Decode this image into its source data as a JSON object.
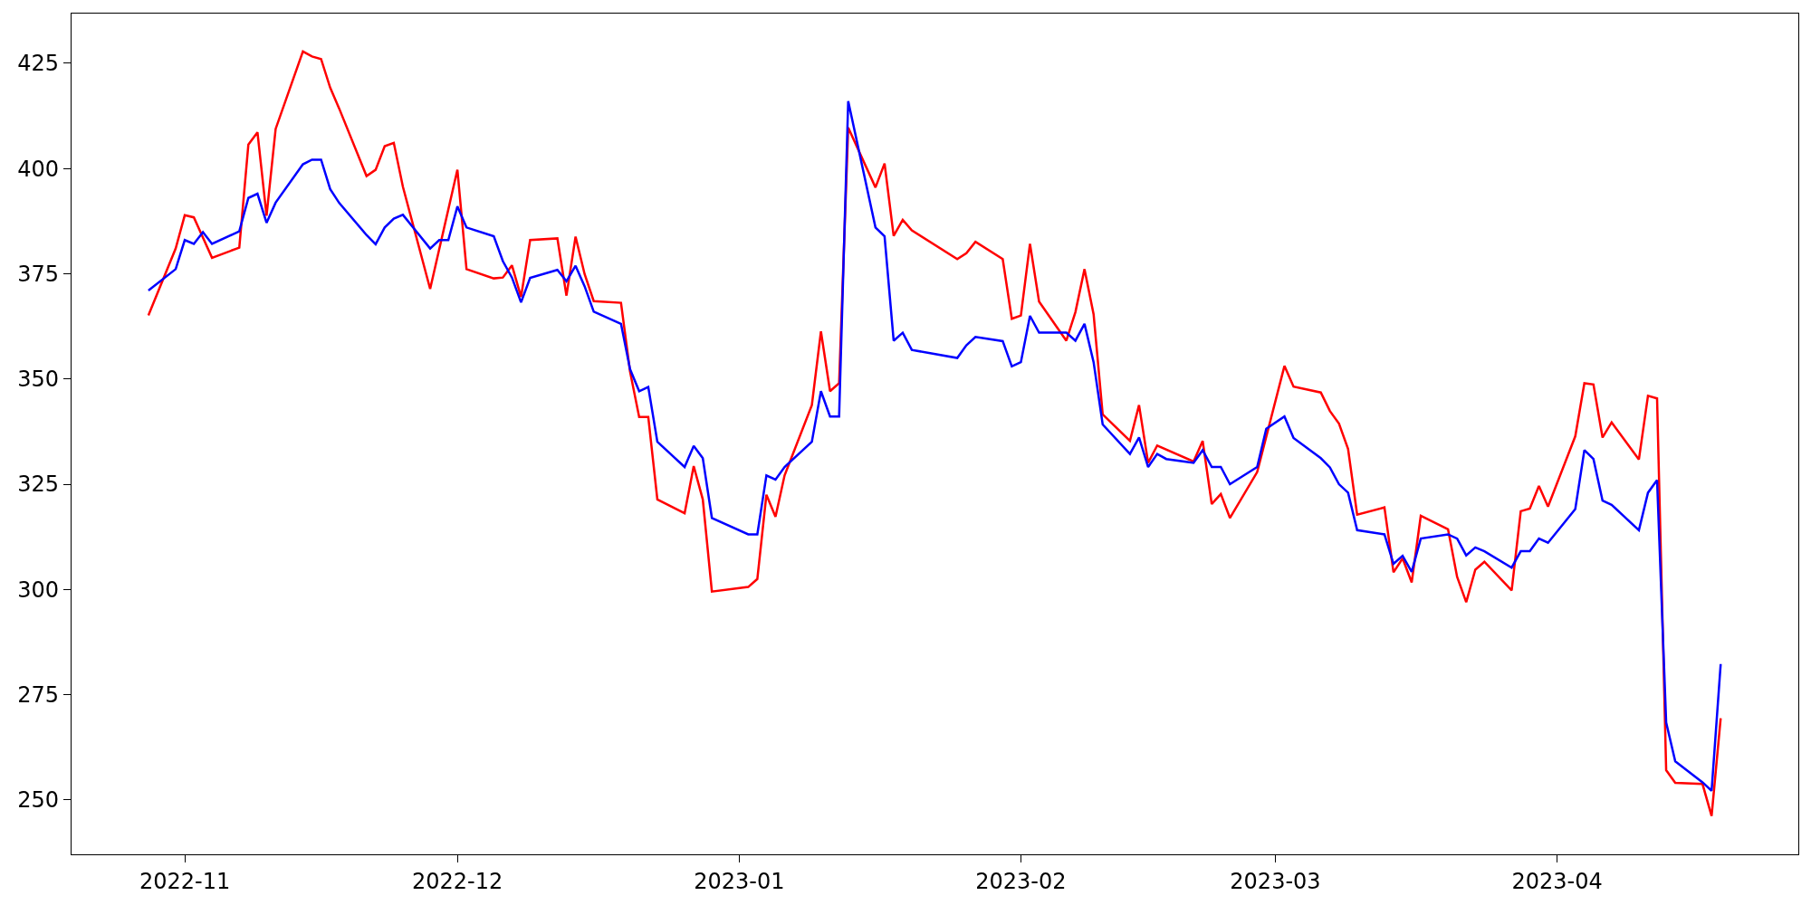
{
  "chart_data": {
    "type": "line",
    "series": [
      {
        "color": "#ff0000",
        "x": [
          "2022-10-28",
          "2022-10-31",
          "2022-11-01",
          "2022-11-02",
          "2022-11-04",
          "2022-11-07",
          "2022-11-08",
          "2022-11-09",
          "2022-11-10",
          "2022-11-11",
          "2022-11-14",
          "2022-11-15",
          "2022-11-16",
          "2022-11-17",
          "2022-11-18",
          "2022-11-21",
          "2022-11-22",
          "2022-11-23",
          "2022-11-24",
          "2022-11-25",
          "2022-11-28",
          "2022-12-01",
          "2022-12-02",
          "2022-12-05",
          "2022-12-06",
          "2022-12-07",
          "2022-12-08",
          "2022-12-09",
          "2022-12-12",
          "2022-12-13",
          "2022-12-14",
          "2022-12-15",
          "2022-12-16",
          "2022-12-19",
          "2022-12-20",
          "2022-12-21",
          "2022-12-22",
          "2022-12-23",
          "2022-12-26",
          "2022-12-27",
          "2022-12-28",
          "2022-12-29",
          "2023-01-02",
          "2023-01-03",
          "2023-01-04",
          "2023-01-05",
          "2023-01-06",
          "2023-01-09",
          "2023-01-10",
          "2023-01-11",
          "2023-01-12",
          "2023-01-13",
          "2023-01-16",
          "2023-01-17",
          "2023-01-18",
          "2023-01-19",
          "2023-01-20",
          "2023-01-25",
          "2023-01-26",
          "2023-01-27",
          "2023-01-30",
          "2023-01-31",
          "2023-02-01",
          "2023-02-02",
          "2023-02-03",
          "2023-02-06",
          "2023-02-07",
          "2023-02-08",
          "2023-02-09",
          "2023-02-10",
          "2023-02-13",
          "2023-02-14",
          "2023-02-15",
          "2023-02-16",
          "2023-02-20",
          "2023-02-21",
          "2023-02-22",
          "2023-02-23",
          "2023-02-24",
          "2023-02-27",
          "2023-03-02",
          "2023-03-03",
          "2023-03-06",
          "2023-03-07",
          "2023-03-08",
          "2023-03-09",
          "2023-03-10",
          "2023-03-13",
          "2023-03-14",
          "2023-03-15",
          "2023-03-16",
          "2023-03-17",
          "2023-03-20",
          "2023-03-21",
          "2023-03-22",
          "2023-03-23",
          "2023-03-24",
          "2023-03-27",
          "2023-03-28",
          "2023-03-29",
          "2023-03-30",
          "2023-03-31",
          "2023-04-03",
          "2023-04-04",
          "2023-04-05",
          "2023-04-06",
          "2023-04-07",
          "2023-04-10",
          "2023-04-11",
          "2023-04-12",
          "2023-04-13",
          "2023-04-14",
          "2023-04-17",
          "2023-04-18",
          "2023-04-19"
        ],
        "values": [
          365.1,
          381.0,
          388.9,
          388.4,
          378.8,
          381.2,
          405.7,
          408.6,
          388.8,
          409.4,
          427.8,
          426.6,
          426.0,
          419.2,
          414.2,
          398.2,
          399.7,
          405.3,
          406.1,
          395.7,
          371.4,
          399.7,
          376.1,
          373.9,
          374.1,
          377.0,
          369.5,
          383.0,
          383.4,
          369.8,
          383.8,
          374.9,
          368.5,
          368.1,
          351.7,
          341.0,
          341.0,
          321.4,
          318.1,
          329.3,
          321.4,
          299.5,
          300.6,
          302.5,
          322.5,
          317.3,
          327.1,
          343.8,
          361.3,
          347.1,
          349.0,
          409.7,
          395.5,
          401.2,
          384.0,
          387.8,
          385.3,
          378.5,
          379.9,
          382.6,
          378.5,
          364.3,
          365.1,
          382.1,
          368.4,
          359.1,
          365.9,
          376.1,
          365.4,
          341.6,
          335.3,
          343.8,
          330.1,
          334.2,
          330.4,
          335.3,
          320.3,
          322.7,
          317.0,
          327.9,
          353.1,
          348.2,
          346.8,
          342.4,
          339.4,
          333.4,
          317.8,
          319.5,
          304.1,
          307.4,
          301.7,
          317.5,
          314.3,
          303.0,
          297.0,
          304.7,
          306.6,
          299.8,
          318.6,
          319.2,
          324.6,
          319.7,
          336.4,
          349.0,
          348.7,
          336.1,
          339.7,
          330.9,
          346.0,
          345.4,
          257.1,
          254.1,
          253.8,
          246.2,
          269.4
        ]
      },
      {
        "color": "#0000ff",
        "x": [
          "2022-10-28",
          "2022-10-31",
          "2022-11-01",
          "2022-11-02",
          "2022-11-03",
          "2022-11-04",
          "2022-11-07",
          "2022-11-08",
          "2022-11-09",
          "2022-11-10",
          "2022-11-11",
          "2022-11-14",
          "2022-11-15",
          "2022-11-16",
          "2022-11-17",
          "2022-11-18",
          "2022-11-21",
          "2022-11-22",
          "2022-11-23",
          "2022-11-24",
          "2022-11-25",
          "2022-11-28",
          "2022-11-29",
          "2022-11-30",
          "2022-12-01",
          "2022-12-02",
          "2022-12-05",
          "2022-12-06",
          "2022-12-07",
          "2022-12-08",
          "2022-12-09",
          "2022-12-12",
          "2022-12-13",
          "2022-12-14",
          "2022-12-15",
          "2022-12-16",
          "2022-12-19",
          "2022-12-20",
          "2022-12-21",
          "2022-12-22",
          "2022-12-23",
          "2022-12-26",
          "2022-12-27",
          "2022-12-28",
          "2022-12-29",
          "2023-01-02",
          "2023-01-03",
          "2023-01-04",
          "2023-01-05",
          "2023-01-06",
          "2023-01-09",
          "2023-01-10",
          "2023-01-11",
          "2023-01-12",
          "2023-01-13",
          "2023-01-16",
          "2023-01-17",
          "2023-01-18",
          "2023-01-19",
          "2023-01-20",
          "2023-01-25",
          "2023-01-26",
          "2023-01-27",
          "2023-01-30",
          "2023-01-31",
          "2023-02-01",
          "2023-02-02",
          "2023-02-03",
          "2023-02-06",
          "2023-02-07",
          "2023-02-08",
          "2023-02-09",
          "2023-02-10",
          "2023-02-13",
          "2023-02-14",
          "2023-02-15",
          "2023-02-16",
          "2023-02-17",
          "2023-02-20",
          "2023-02-21",
          "2023-02-22",
          "2023-02-23",
          "2023-02-24",
          "2023-02-27",
          "2023-02-28",
          "2023-03-02",
          "2023-03-03",
          "2023-03-06",
          "2023-03-07",
          "2023-03-08",
          "2023-03-09",
          "2023-03-10",
          "2023-03-13",
          "2023-03-14",
          "2023-03-15",
          "2023-03-16",
          "2023-03-17",
          "2023-03-20",
          "2023-03-21",
          "2023-03-22",
          "2023-03-23",
          "2023-03-24",
          "2023-03-27",
          "2023-03-28",
          "2023-03-29",
          "2023-03-30",
          "2023-03-31",
          "2023-04-03",
          "2023-04-04",
          "2023-04-05",
          "2023-04-06",
          "2023-04-07",
          "2023-04-10",
          "2023-04-11",
          "2023-04-12",
          "2023-04-13",
          "2023-04-14",
          "2023-04-17",
          "2023-04-18",
          "2023-04-19"
        ],
        "values": [
          371.0,
          376.1,
          383.0,
          382.1,
          384.9,
          382.1,
          385.1,
          393.0,
          394.0,
          387.1,
          391.9,
          401.0,
          402.1,
          402.1,
          395.1,
          391.8,
          384.2,
          382.0,
          386.0,
          388.1,
          389.0,
          381.0,
          383.0,
          383.0,
          391.0,
          386.0,
          383.9,
          378.0,
          374.1,
          368.2,
          374.0,
          375.9,
          373.2,
          376.9,
          372.0,
          366.0,
          363.1,
          352.3,
          347.1,
          348.1,
          335.1,
          329.1,
          334.1,
          331.2,
          317.0,
          313.1,
          313.1,
          327.1,
          326.1,
          329.1,
          335.1,
          347.1,
          341.1,
          341.1,
          416.0,
          386.0,
          383.9,
          359.1,
          361.0,
          356.9,
          355.0,
          358.0,
          360.0,
          359.0,
          353.0,
          354.0,
          365.0,
          361.0,
          361.0,
          359.1,
          363.1,
          354.0,
          339.2,
          332.2,
          336.1,
          329.1,
          332.2,
          331.0,
          330.1,
          333.1,
          329.1,
          329.1,
          325.0,
          329.1,
          338.2,
          341.1,
          336.0,
          331.2,
          329.0,
          325.0,
          323.0,
          314.1,
          313.1,
          306.1,
          308.0,
          304.2,
          312.1,
          313.1,
          312.1,
          308.1,
          310.0,
          309.1,
          305.2,
          309.1,
          309.1,
          312.1,
          311.1,
          319.1,
          333.1,
          331.0,
          321.1,
          320.1,
          314.1,
          323.0,
          326.0,
          268.4,
          259.2,
          254.2,
          252.2,
          282.3
        ]
      }
    ],
    "xlim": [
      "2022-10-19T13:00",
      "2023-04-27T13:00"
    ],
    "xticks": [
      {
        "value": "2022-11-01",
        "label": "2022-11"
      },
      {
        "value": "2022-12-01",
        "label": "2022-12"
      },
      {
        "value": "2023-01-01",
        "label": "2023-01"
      },
      {
        "value": "2023-02-01",
        "label": "2023-02"
      },
      {
        "value": "2023-03-01",
        "label": "2023-03"
      },
      {
        "value": "2023-04-01",
        "label": "2023-04"
      }
    ],
    "ylim": [
      237.1,
      436.8
    ],
    "yticks": [
      250,
      275,
      300,
      325,
      350,
      375,
      400,
      425
    ],
    "marker": "none",
    "line_style": "solid"
  }
}
